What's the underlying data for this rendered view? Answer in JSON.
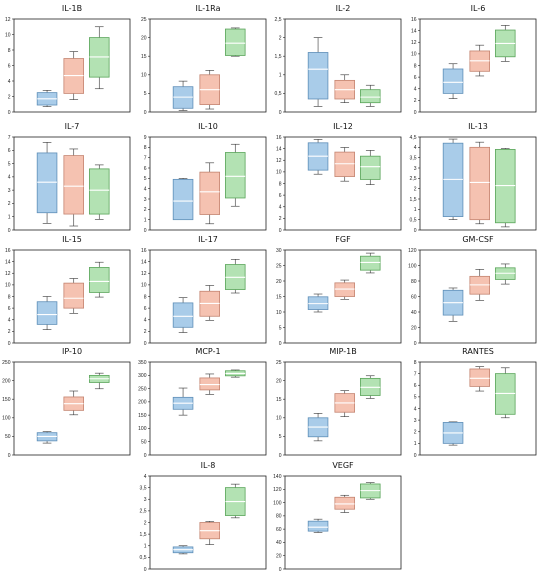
{
  "figure": {
    "colors": {
      "blue": "#a9cce9",
      "red": "#f5c2b1",
      "green": "#b3e2b3",
      "blue_edge": "#5f8fb8",
      "red_edge": "#c48470",
      "green_edge": "#5aa55a"
    },
    "series_colors": [
      "blue",
      "red",
      "green"
    ]
  },
  "chart_data": [
    {
      "type": "box",
      "title": "IL-1B",
      "ylim": [
        0,
        12
      ],
      "yticks": [
        "0",
        "2",
        "4",
        "6",
        "8",
        "10",
        "12"
      ],
      "boxes": [
        {
          "min": 0.7,
          "q1": 0.9,
          "median": 1.7,
          "q3": 2.5,
          "max": 2.8
        },
        {
          "min": 1.6,
          "q1": 2.4,
          "median": 4.7,
          "q3": 6.9,
          "max": 7.8
        },
        {
          "min": 3.0,
          "q1": 4.5,
          "median": 7.1,
          "q3": 9.6,
          "max": 11.0
        }
      ]
    },
    {
      "type": "box",
      "title": "IL-1Ra",
      "ylim": [
        0,
        25
      ],
      "yticks": [
        "0",
        "5",
        "10",
        "15",
        "20",
        "25"
      ],
      "boxes": [
        {
          "min": 0.4,
          "q1": 1.0,
          "median": 4.0,
          "q3": 6.8,
          "max": 8.3
        },
        {
          "min": 0.8,
          "q1": 2.0,
          "median": 6.0,
          "q3": 10.0,
          "max": 11.2
        },
        {
          "min": 15.0,
          "q1": 15.2,
          "median": 18.5,
          "q3": 22.3,
          "max": 22.6
        }
      ]
    },
    {
      "type": "box",
      "title": "IL-2",
      "ylim": [
        0,
        2.5
      ],
      "yticks": [
        "0",
        "0,5",
        "1",
        "1,5",
        "2",
        "2,5"
      ],
      "boxes": [
        {
          "min": 0.15,
          "q1": 0.35,
          "median": 1.15,
          "q3": 1.6,
          "max": 2.0
        },
        {
          "min": 0.25,
          "q1": 0.35,
          "median": 0.6,
          "q3": 0.85,
          "max": 1.0
        },
        {
          "min": 0.15,
          "q1": 0.25,
          "median": 0.4,
          "q3": 0.6,
          "max": 0.72
        }
      ]
    },
    {
      "type": "box",
      "title": "IL-6",
      "ylim": [
        0,
        16
      ],
      "yticks": [
        "0",
        "2",
        "4",
        "6",
        "8",
        "10",
        "12",
        "14",
        "16"
      ],
      "boxes": [
        {
          "min": 2.3,
          "q1": 3.2,
          "median": 5.1,
          "q3": 7.4,
          "max": 8.3
        },
        {
          "min": 6.2,
          "q1": 7.0,
          "median": 8.8,
          "q3": 10.5,
          "max": 11.5
        },
        {
          "min": 8.7,
          "q1": 9.5,
          "median": 11.8,
          "q3": 14.1,
          "max": 14.9
        }
      ]
    },
    {
      "type": "box",
      "title": "IL-7",
      "ylim": [
        0,
        7
      ],
      "yticks": [
        "0",
        "1",
        "2",
        "3",
        "4",
        "5",
        "6",
        "7"
      ],
      "boxes": [
        {
          "min": 0.5,
          "q1": 1.3,
          "median": 3.6,
          "q3": 5.8,
          "max": 6.6
        },
        {
          "min": 0.3,
          "q1": 1.2,
          "median": 3.3,
          "q3": 5.6,
          "max": 6.1
        },
        {
          "min": 0.8,
          "q1": 1.2,
          "median": 3.0,
          "q3": 4.6,
          "max": 4.9
        }
      ]
    },
    {
      "type": "box",
      "title": "IL-10",
      "ylim": [
        0,
        9
      ],
      "yticks": [
        "0",
        "1",
        "2",
        "3",
        "4",
        "5",
        "6",
        "7",
        "8",
        "9"
      ],
      "boxes": [
        {
          "min": 1.0,
          "q1": 1.0,
          "median": 2.8,
          "q3": 4.9,
          "max": 5.0
        },
        {
          "min": 0.6,
          "q1": 1.5,
          "median": 3.7,
          "q3": 5.6,
          "max": 6.5
        },
        {
          "min": 2.3,
          "q1": 3.1,
          "median": 5.2,
          "q3": 7.5,
          "max": 8.3
        }
      ]
    },
    {
      "type": "box",
      "title": "IL-12",
      "ylim": [
        0,
        16
      ],
      "yticks": [
        "0",
        "2",
        "4",
        "6",
        "8",
        "10",
        "12",
        "14",
        "16"
      ],
      "boxes": [
        {
          "min": 9.6,
          "q1": 10.3,
          "median": 12.7,
          "q3": 15.0,
          "max": 15.6
        },
        {
          "min": 8.4,
          "q1": 9.2,
          "median": 11.4,
          "q3": 13.4,
          "max": 14.2
        },
        {
          "min": 7.8,
          "q1": 8.7,
          "median": 10.9,
          "q3": 12.7,
          "max": 13.7
        }
      ]
    },
    {
      "type": "box",
      "title": "IL-13",
      "ylim": [
        0,
        4.5
      ],
      "yticks": [
        "0",
        "0,5",
        "1",
        "1,5",
        "2",
        "2,5",
        "3",
        "3,5",
        "4",
        "4,5"
      ],
      "boxes": [
        {
          "min": 0.5,
          "q1": 0.65,
          "median": 2.45,
          "q3": 4.2,
          "max": 4.4
        },
        {
          "min": 0.3,
          "q1": 0.5,
          "median": 2.3,
          "q3": 4.0,
          "max": 4.25
        },
        {
          "min": 0.15,
          "q1": 0.35,
          "median": 2.15,
          "q3": 3.9,
          "max": 3.95
        }
      ]
    },
    {
      "type": "box",
      "title": "IL-15",
      "ylim": [
        0,
        16
      ],
      "yticks": [
        "0",
        "2",
        "4",
        "6",
        "8",
        "10",
        "12",
        "14",
        "16"
      ],
      "boxes": [
        {
          "min": 2.3,
          "q1": 3.2,
          "median": 4.9,
          "q3": 7.1,
          "max": 8.0
        },
        {
          "min": 5.1,
          "q1": 6.0,
          "median": 7.7,
          "q3": 10.3,
          "max": 11.1
        },
        {
          "min": 7.9,
          "q1": 8.7,
          "median": 10.6,
          "q3": 13.0,
          "max": 13.9
        }
      ]
    },
    {
      "type": "box",
      "title": "IL-17",
      "ylim": [
        0,
        16
      ],
      "yticks": [
        "0",
        "2",
        "4",
        "6",
        "8",
        "10",
        "12",
        "14",
        "16"
      ],
      "boxes": [
        {
          "min": 1.8,
          "q1": 2.7,
          "median": 4.6,
          "q3": 6.9,
          "max": 7.8
        },
        {
          "min": 3.9,
          "q1": 4.6,
          "median": 6.8,
          "q3": 8.9,
          "max": 9.9
        },
        {
          "min": 8.6,
          "q1": 9.2,
          "median": 11.3,
          "q3": 13.5,
          "max": 14.4
        }
      ]
    },
    {
      "type": "box",
      "title": "FGF",
      "ylim": [
        0,
        30
      ],
      "yticks": [
        "0",
        "5",
        "10",
        "15",
        "20",
        "25",
        "30"
      ],
      "boxes": [
        {
          "min": 10.0,
          "q1": 10.8,
          "median": 12.7,
          "q3": 14.9,
          "max": 15.8
        },
        {
          "min": 14.1,
          "q1": 15.0,
          "median": 17.4,
          "q3": 19.4,
          "max": 20.3
        },
        {
          "min": 22.6,
          "q1": 23.5,
          "median": 26.0,
          "q3": 28.0,
          "max": 29.0
        }
      ]
    },
    {
      "type": "box",
      "title": "GM-CSF",
      "ylim": [
        0,
        120
      ],
      "yticks": [
        "0",
        "20",
        "40",
        "60",
        "80",
        "100",
        "120"
      ],
      "boxes": [
        {
          "min": 28,
          "q1": 36,
          "median": 52,
          "q3": 68,
          "max": 71
        },
        {
          "min": 55,
          "q1": 63,
          "median": 75,
          "q3": 86,
          "max": 95
        },
        {
          "min": 76,
          "q1": 82,
          "median": 90,
          "q3": 97,
          "max": 102
        }
      ]
    },
    {
      "type": "box",
      "title": "IP-10",
      "ylim": [
        0,
        250
      ],
      "yticks": [
        "0",
        "50",
        "100",
        "150",
        "200",
        "250"
      ],
      "boxes": [
        {
          "min": 32,
          "q1": 38,
          "median": 50,
          "q3": 60,
          "max": 63
        },
        {
          "min": 108,
          "q1": 120,
          "median": 138,
          "q3": 156,
          "max": 172
        },
        {
          "min": 178,
          "q1": 195,
          "median": 205,
          "q3": 214,
          "max": 220
        }
      ]
    },
    {
      "type": "box",
      "title": "MCP-1",
      "ylim": [
        0,
        350
      ],
      "yticks": [
        "0",
        "50",
        "100",
        "150",
        "200",
        "250",
        "300",
        "350"
      ],
      "boxes": [
        {
          "min": 150,
          "q1": 172,
          "median": 195,
          "q3": 217,
          "max": 252
        },
        {
          "min": 228,
          "q1": 245,
          "median": 265,
          "q3": 290,
          "max": 305
        },
        {
          "min": 293,
          "q1": 298,
          "median": 307,
          "q3": 317,
          "max": 320
        }
      ]
    },
    {
      "type": "box",
      "title": "MIP-1B",
      "ylim": [
        0,
        25
      ],
      "yticks": [
        "0",
        "5",
        "10",
        "15",
        "20",
        "25"
      ],
      "boxes": [
        {
          "min": 3.8,
          "q1": 4.9,
          "median": 7.5,
          "q3": 10.0,
          "max": 11.2
        },
        {
          "min": 10.3,
          "q1": 11.5,
          "median": 14.0,
          "q3": 16.5,
          "max": 17.3
        },
        {
          "min": 15.2,
          "q1": 16.0,
          "median": 18.2,
          "q3": 20.6,
          "max": 21.3
        }
      ]
    },
    {
      "type": "box",
      "title": "RANTES",
      "ylim": [
        0,
        8
      ],
      "yticks": [
        "0",
        "1",
        "2",
        "3",
        "4",
        "5",
        "6",
        "7",
        "8"
      ],
      "boxes": [
        {
          "min": 0.85,
          "q1": 1.0,
          "median": 1.9,
          "q3": 2.8,
          "max": 2.85
        },
        {
          "min": 5.5,
          "q1": 5.9,
          "median": 6.6,
          "q3": 7.4,
          "max": 7.6
        },
        {
          "min": 3.2,
          "q1": 3.5,
          "median": 5.3,
          "q3": 7.0,
          "max": 7.5
        }
      ]
    },
    {
      "type": "box",
      "title": "IL-8",
      "ylim": [
        0,
        4
      ],
      "yticks": [
        "0",
        "0,5",
        "1",
        "1,5",
        "2",
        "2,5",
        "3",
        "3,5",
        "4"
      ],
      "boxes": [
        {
          "min": 0.65,
          "q1": 0.7,
          "median": 0.83,
          "q3": 0.95,
          "max": 1.0
        },
        {
          "min": 1.05,
          "q1": 1.3,
          "median": 1.65,
          "q3": 2.0,
          "max": 2.05
        },
        {
          "min": 2.2,
          "q1": 2.3,
          "median": 2.9,
          "q3": 3.5,
          "max": 3.65
        }
      ]
    },
    {
      "type": "box",
      "title": "VEGF",
      "ylim": [
        0,
        140
      ],
      "yticks": [
        "0",
        "20",
        "40",
        "60",
        "80",
        "100",
        "120",
        "140"
      ],
      "boxes": [
        {
          "min": 55,
          "q1": 57,
          "median": 63,
          "q3": 72,
          "max": 75
        },
        {
          "min": 85,
          "q1": 90,
          "median": 98,
          "q3": 108,
          "max": 111
        },
        {
          "min": 105,
          "q1": 107,
          "median": 118,
          "q3": 128,
          "max": 130
        }
      ]
    }
  ]
}
